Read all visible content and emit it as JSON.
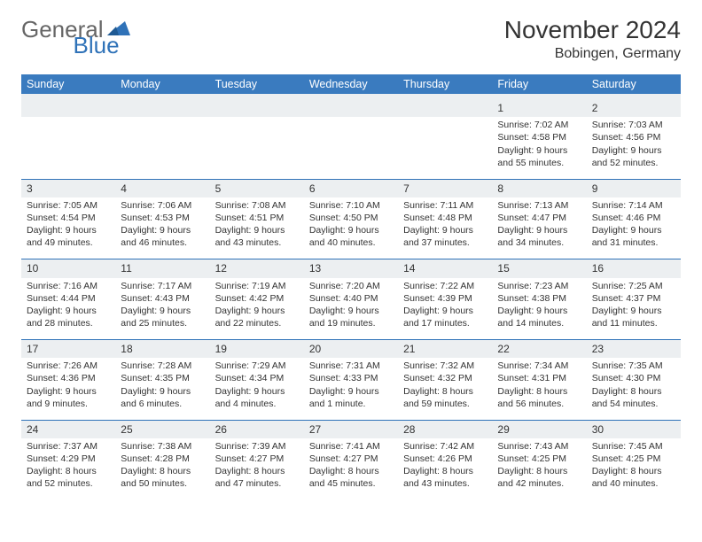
{
  "logo": {
    "general": "General",
    "blue": "Blue"
  },
  "header": {
    "month_title": "November 2024",
    "location": "Bobingen, Germany"
  },
  "colors": {
    "header_bg": "#3a7bbf",
    "accent": "#2f72b8",
    "daynum_bg": "#eceff1",
    "text": "#333333"
  },
  "daynames": [
    "Sunday",
    "Monday",
    "Tuesday",
    "Wednesday",
    "Thursday",
    "Friday",
    "Saturday"
  ],
  "weeks": [
    [
      {
        "num": "",
        "sun": "",
        "set": "",
        "dl": ""
      },
      {
        "num": "",
        "sun": "",
        "set": "",
        "dl": ""
      },
      {
        "num": "",
        "sun": "",
        "set": "",
        "dl": ""
      },
      {
        "num": "",
        "sun": "",
        "set": "",
        "dl": ""
      },
      {
        "num": "",
        "sun": "",
        "set": "",
        "dl": ""
      },
      {
        "num": "1",
        "sun": "Sunrise: 7:02 AM",
        "set": "Sunset: 4:58 PM",
        "dl": "Daylight: 9 hours and 55 minutes."
      },
      {
        "num": "2",
        "sun": "Sunrise: 7:03 AM",
        "set": "Sunset: 4:56 PM",
        "dl": "Daylight: 9 hours and 52 minutes."
      }
    ],
    [
      {
        "num": "3",
        "sun": "Sunrise: 7:05 AM",
        "set": "Sunset: 4:54 PM",
        "dl": "Daylight: 9 hours and 49 minutes."
      },
      {
        "num": "4",
        "sun": "Sunrise: 7:06 AM",
        "set": "Sunset: 4:53 PM",
        "dl": "Daylight: 9 hours and 46 minutes."
      },
      {
        "num": "5",
        "sun": "Sunrise: 7:08 AM",
        "set": "Sunset: 4:51 PM",
        "dl": "Daylight: 9 hours and 43 minutes."
      },
      {
        "num": "6",
        "sun": "Sunrise: 7:10 AM",
        "set": "Sunset: 4:50 PM",
        "dl": "Daylight: 9 hours and 40 minutes."
      },
      {
        "num": "7",
        "sun": "Sunrise: 7:11 AM",
        "set": "Sunset: 4:48 PM",
        "dl": "Daylight: 9 hours and 37 minutes."
      },
      {
        "num": "8",
        "sun": "Sunrise: 7:13 AM",
        "set": "Sunset: 4:47 PM",
        "dl": "Daylight: 9 hours and 34 minutes."
      },
      {
        "num": "9",
        "sun": "Sunrise: 7:14 AM",
        "set": "Sunset: 4:46 PM",
        "dl": "Daylight: 9 hours and 31 minutes."
      }
    ],
    [
      {
        "num": "10",
        "sun": "Sunrise: 7:16 AM",
        "set": "Sunset: 4:44 PM",
        "dl": "Daylight: 9 hours and 28 minutes."
      },
      {
        "num": "11",
        "sun": "Sunrise: 7:17 AM",
        "set": "Sunset: 4:43 PM",
        "dl": "Daylight: 9 hours and 25 minutes."
      },
      {
        "num": "12",
        "sun": "Sunrise: 7:19 AM",
        "set": "Sunset: 4:42 PM",
        "dl": "Daylight: 9 hours and 22 minutes."
      },
      {
        "num": "13",
        "sun": "Sunrise: 7:20 AM",
        "set": "Sunset: 4:40 PM",
        "dl": "Daylight: 9 hours and 19 minutes."
      },
      {
        "num": "14",
        "sun": "Sunrise: 7:22 AM",
        "set": "Sunset: 4:39 PM",
        "dl": "Daylight: 9 hours and 17 minutes."
      },
      {
        "num": "15",
        "sun": "Sunrise: 7:23 AM",
        "set": "Sunset: 4:38 PM",
        "dl": "Daylight: 9 hours and 14 minutes."
      },
      {
        "num": "16",
        "sun": "Sunrise: 7:25 AM",
        "set": "Sunset: 4:37 PM",
        "dl": "Daylight: 9 hours and 11 minutes."
      }
    ],
    [
      {
        "num": "17",
        "sun": "Sunrise: 7:26 AM",
        "set": "Sunset: 4:36 PM",
        "dl": "Daylight: 9 hours and 9 minutes."
      },
      {
        "num": "18",
        "sun": "Sunrise: 7:28 AM",
        "set": "Sunset: 4:35 PM",
        "dl": "Daylight: 9 hours and 6 minutes."
      },
      {
        "num": "19",
        "sun": "Sunrise: 7:29 AM",
        "set": "Sunset: 4:34 PM",
        "dl": "Daylight: 9 hours and 4 minutes."
      },
      {
        "num": "20",
        "sun": "Sunrise: 7:31 AM",
        "set": "Sunset: 4:33 PM",
        "dl": "Daylight: 9 hours and 1 minute."
      },
      {
        "num": "21",
        "sun": "Sunrise: 7:32 AM",
        "set": "Sunset: 4:32 PM",
        "dl": "Daylight: 8 hours and 59 minutes."
      },
      {
        "num": "22",
        "sun": "Sunrise: 7:34 AM",
        "set": "Sunset: 4:31 PM",
        "dl": "Daylight: 8 hours and 56 minutes."
      },
      {
        "num": "23",
        "sun": "Sunrise: 7:35 AM",
        "set": "Sunset: 4:30 PM",
        "dl": "Daylight: 8 hours and 54 minutes."
      }
    ],
    [
      {
        "num": "24",
        "sun": "Sunrise: 7:37 AM",
        "set": "Sunset: 4:29 PM",
        "dl": "Daylight: 8 hours and 52 minutes."
      },
      {
        "num": "25",
        "sun": "Sunrise: 7:38 AM",
        "set": "Sunset: 4:28 PM",
        "dl": "Daylight: 8 hours and 50 minutes."
      },
      {
        "num": "26",
        "sun": "Sunrise: 7:39 AM",
        "set": "Sunset: 4:27 PM",
        "dl": "Daylight: 8 hours and 47 minutes."
      },
      {
        "num": "27",
        "sun": "Sunrise: 7:41 AM",
        "set": "Sunset: 4:27 PM",
        "dl": "Daylight: 8 hours and 45 minutes."
      },
      {
        "num": "28",
        "sun": "Sunrise: 7:42 AM",
        "set": "Sunset: 4:26 PM",
        "dl": "Daylight: 8 hours and 43 minutes."
      },
      {
        "num": "29",
        "sun": "Sunrise: 7:43 AM",
        "set": "Sunset: 4:25 PM",
        "dl": "Daylight: 8 hours and 42 minutes."
      },
      {
        "num": "30",
        "sun": "Sunrise: 7:45 AM",
        "set": "Sunset: 4:25 PM",
        "dl": "Daylight: 8 hours and 40 minutes."
      }
    ]
  ]
}
